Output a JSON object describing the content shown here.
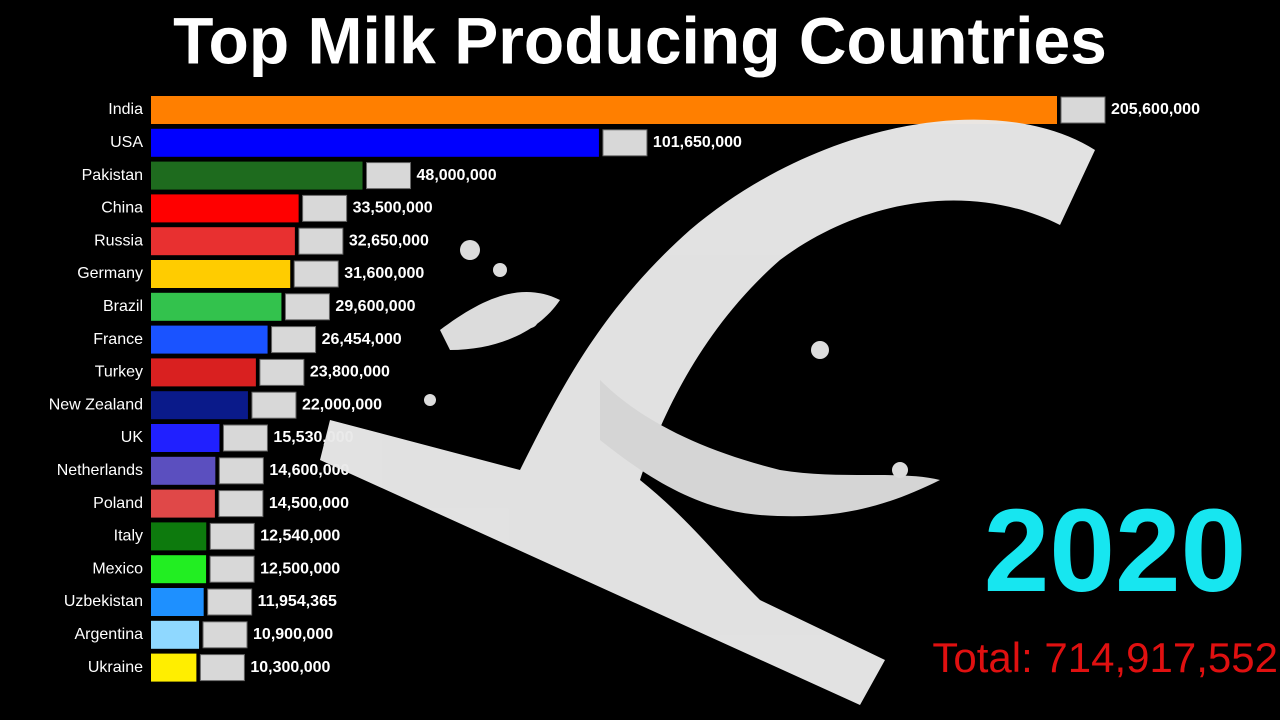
{
  "chart_data": {
    "type": "bar",
    "orientation": "horizontal",
    "title": "Top Milk Producing Countries",
    "categories": [
      "India",
      "USA",
      "Pakistan",
      "China",
      "Russia",
      "Germany",
      "Brazil",
      "France",
      "Turkey",
      "New Zealand",
      "UK",
      "Netherlands",
      "Poland",
      "Italy",
      "Mexico",
      "Uzbekistan",
      "Argentina",
      "Ukraine"
    ],
    "values": [
      205600000,
      101650000,
      48000000,
      33500000,
      32650000,
      31600000,
      29600000,
      26454000,
      23800000,
      22000000,
      15530000,
      14600000,
      14500000,
      12540000,
      12500000,
      11954365,
      10900000,
      10300000
    ],
    "value_labels": [
      "205,600,000",
      "101,650,000",
      "48,000,000",
      "33,500,000",
      "32,650,000",
      "31,600,000",
      "29,600,000",
      "26,454,000",
      "23,800,000",
      "22,000,000",
      "15,530,000",
      "14,600,000",
      "14,500,000",
      "12,540,000",
      "12,500,000",
      "11,954,365",
      "10,900,000",
      "10,300,000"
    ],
    "colors": [
      "#ff7f00",
      "#0000ff",
      "#1e6b1e",
      "#ff0000",
      "#e83030",
      "#ffcc00",
      "#33c24d",
      "#1a53ff",
      "#d92020",
      "#0a1a8a",
      "#2020ff",
      "#5b4fbf",
      "#e04848",
      "#0d7a0d",
      "#22ee22",
      "#1e90ff",
      "#8fd8ff",
      "#ffee00"
    ],
    "year": "2020",
    "total": "Total: 714,917,552"
  }
}
